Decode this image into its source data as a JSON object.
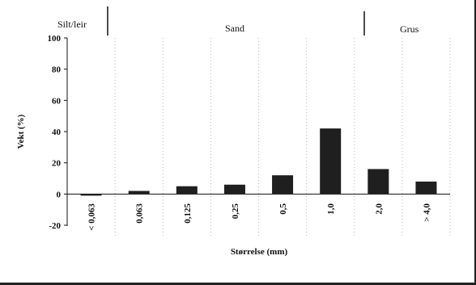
{
  "chart_data": {
    "type": "bar",
    "title": "",
    "xlabel": "Størrelse (mm)",
    "ylabel": "Vekt (%)",
    "ylim": [
      -20,
      100
    ],
    "yticks": [
      -20,
      0,
      20,
      40,
      60,
      80,
      100
    ],
    "grid": "vertical dotted lines between categories",
    "categories": [
      "< 0,063",
      "0,063",
      "0,125",
      "0,25",
      "0,5",
      "1,0",
      "2,0",
      "> 4,0"
    ],
    "values": [
      -1,
      2,
      5,
      6,
      12,
      42,
      16,
      8
    ],
    "bar_color": "#1f1f1f",
    "regions": [
      {
        "label": "Silt/leir"
      },
      {
        "label": "Sand"
      },
      {
        "label": "Grus"
      }
    ]
  }
}
